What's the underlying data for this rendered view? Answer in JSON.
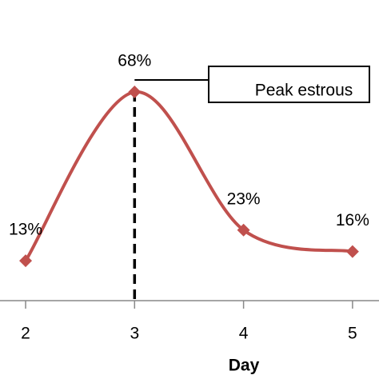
{
  "chart_data": {
    "type": "line",
    "x": [
      2,
      3,
      4,
      5
    ],
    "values": [
      13,
      68,
      23,
      16
    ],
    "value_labels": [
      "13%",
      "68%",
      "23%",
      "16%"
    ],
    "color": "#c0504d",
    "xlim": [
      1.765,
      5.243
    ],
    "xticks": [
      2,
      3,
      4,
      5
    ],
    "ylim": [
      0,
      80
    ],
    "xlabel": "Day",
    "annotation": "Peak estrous"
  }
}
